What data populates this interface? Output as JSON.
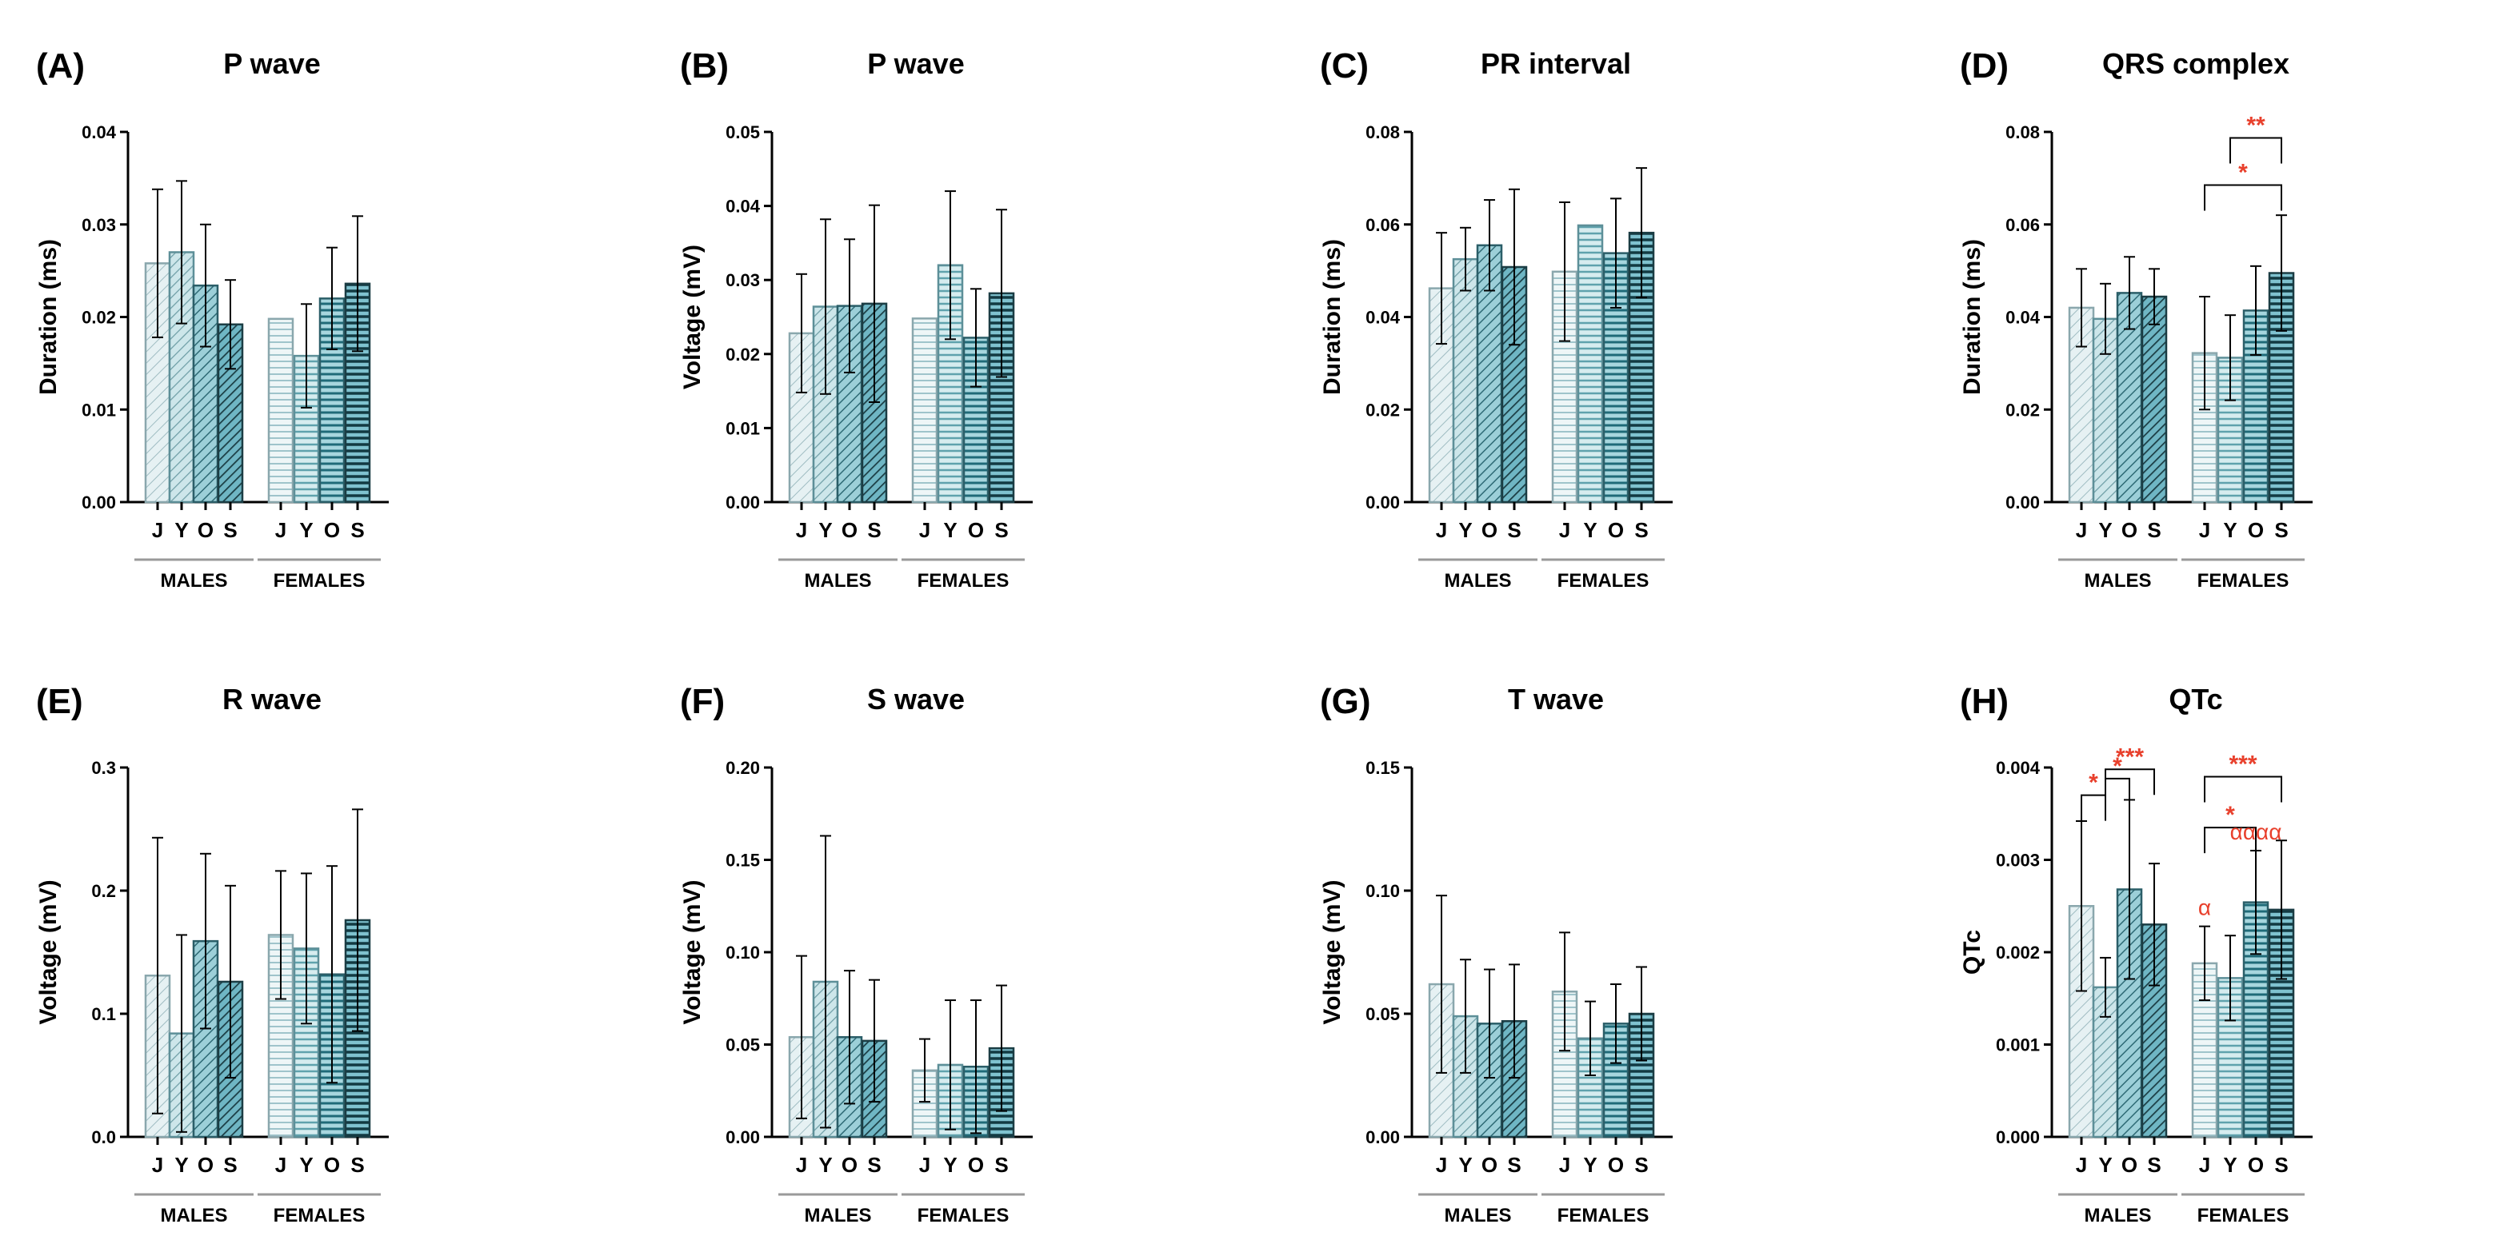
{
  "colors": {
    "axis": "#000000",
    "group_line": "#9a9a9a",
    "significance": "#e8402c",
    "fill_J": "#e6f1f3",
    "fill_Y": "#cde6ea",
    "fill_O": "#9ccfd8",
    "fill_S": "#6fb6c4",
    "stroke_J": "#8aa7ad",
    "stroke_Y": "#5d8f98",
    "stroke_O": "#2b5e68",
    "stroke_S": "#1b3d44"
  },
  "chart_data": [
    {
      "panel": "(A)",
      "type": "bar",
      "title": "P wave",
      "ylabel": "Duration (ms)",
      "ylim": [
        0,
        0.04
      ],
      "yticks": [
        "0.00",
        "0.01",
        "0.02",
        "0.03",
        "0.04"
      ],
      "categories": [
        "J",
        "Y",
        "O",
        "S",
        "J",
        "Y",
        "O",
        "S"
      ],
      "groups": [
        "MALES",
        "FEMALES"
      ],
      "values": [
        0.0258,
        0.027,
        0.0234,
        0.0192,
        0.0198,
        0.0158,
        0.022,
        0.0236
      ],
      "errors": [
        0.008,
        0.0077,
        0.0066,
        0.0048,
        0.0,
        0.0056,
        0.0055,
        0.0073
      ],
      "sig_brackets": [],
      "alpha_marks": []
    },
    {
      "panel": "(B)",
      "type": "bar",
      "title": "P wave",
      "ylabel": "Voltage (mV)",
      "ylim": [
        0,
        0.05
      ],
      "yticks": [
        "0.00",
        "0.01",
        "0.02",
        "0.03",
        "0.04",
        "0.05"
      ],
      "categories": [
        "J",
        "Y",
        "O",
        "S",
        "J",
        "Y",
        "O",
        "S"
      ],
      "groups": [
        "MALES",
        "FEMALES"
      ],
      "values": [
        0.0228,
        0.0264,
        0.0265,
        0.0268,
        0.0248,
        0.032,
        0.0222,
        0.0282
      ],
      "errors": [
        0.008,
        0.0118,
        0.009,
        0.0133,
        0.0,
        0.01,
        0.0066,
        0.0113
      ],
      "sig_brackets": [],
      "alpha_marks": []
    },
    {
      "panel": "(C)",
      "type": "bar",
      "title": "PR interval",
      "ylabel": "Duration (ms)",
      "ylim": [
        0,
        0.08
      ],
      "yticks": [
        "0.00",
        "0.02",
        "0.04",
        "0.06",
        "0.08"
      ],
      "categories": [
        "J",
        "Y",
        "O",
        "S",
        "J",
        "Y",
        "O",
        "S"
      ],
      "groups": [
        "MALES",
        "FEMALES"
      ],
      "values": [
        0.0462,
        0.0525,
        0.0555,
        0.0508,
        0.0498,
        0.0598,
        0.0538,
        0.0582
      ],
      "errors": [
        0.012,
        0.0068,
        0.0098,
        0.0168,
        0.015,
        0.0,
        0.0118,
        0.014
      ],
      "sig_brackets": [],
      "alpha_marks": []
    },
    {
      "panel": "(D)",
      "type": "bar",
      "title": "QRS complex",
      "ylabel": "Duration (ms)",
      "ylim": [
        0,
        0.08
      ],
      "yticks": [
        "0.00",
        "0.02",
        "0.04",
        "0.06",
        "0.08"
      ],
      "categories": [
        "J",
        "Y",
        "O",
        "S",
        "J",
        "Y",
        "O",
        "S"
      ],
      "groups": [
        "MALES",
        "FEMALES"
      ],
      "values": [
        0.042,
        0.0396,
        0.0452,
        0.0444,
        0.0322,
        0.0312,
        0.0414,
        0.0495
      ],
      "errors": [
        0.0084,
        0.0076,
        0.0078,
        0.006,
        0.0122,
        0.0092,
        0.0096,
        0.0125
      ],
      "sig_brackets": [
        {
          "from": 5,
          "to": 7,
          "y": 0.0787,
          "label": "**"
        },
        {
          "from": 4,
          "to": 7,
          "y": 0.0685,
          "label": "*"
        }
      ],
      "alpha_marks": []
    },
    {
      "panel": "(E)",
      "type": "bar",
      "title": "R wave",
      "ylabel": "Voltage (mV)",
      "ylim": [
        0,
        0.3
      ],
      "yticks": [
        "0.0",
        "0.1",
        "0.2",
        "0.3"
      ],
      "categories": [
        "J",
        "Y",
        "O",
        "S",
        "J",
        "Y",
        "O",
        "S"
      ],
      "groups": [
        "MALES",
        "FEMALES"
      ],
      "values": [
        0.131,
        0.084,
        0.159,
        0.126,
        0.164,
        0.153,
        0.132,
        0.176
      ],
      "errors": [
        0.112,
        0.08,
        0.071,
        0.078,
        0.052,
        0.061,
        0.088,
        0.09
      ],
      "sig_brackets": [],
      "alpha_marks": []
    },
    {
      "panel": "(F)",
      "type": "bar",
      "title": "S wave",
      "ylabel": "Voltage (mV)",
      "ylim": [
        0,
        0.2
      ],
      "yticks": [
        "0.00",
        "0.05",
        "0.10",
        "0.15",
        "0.20"
      ],
      "categories": [
        "J",
        "Y",
        "O",
        "S",
        "J",
        "Y",
        "O",
        "S"
      ],
      "groups": [
        "MALES",
        "FEMALES"
      ],
      "values": [
        0.054,
        0.084,
        0.054,
        0.052,
        0.036,
        0.039,
        0.038,
        0.048
      ],
      "errors": [
        0.044,
        0.079,
        0.036,
        0.033,
        0.017,
        0.035,
        0.036,
        0.034
      ],
      "sig_brackets": [],
      "alpha_marks": []
    },
    {
      "panel": "(G)",
      "type": "bar",
      "title": "T wave",
      "ylabel": "Voltage (mV)",
      "ylim": [
        0,
        0.15
      ],
      "yticks": [
        "0.00",
        "0.05",
        "0.10",
        "0.15"
      ],
      "categories": [
        "J",
        "Y",
        "O",
        "S",
        "J",
        "Y",
        "O",
        "S"
      ],
      "groups": [
        "MALES",
        "FEMALES"
      ],
      "values": [
        0.062,
        0.049,
        0.046,
        0.047,
        0.059,
        0.04,
        0.046,
        0.05
      ],
      "errors": [
        0.036,
        0.023,
        0.022,
        0.023,
        0.024,
        0.015,
        0.016,
        0.019
      ],
      "sig_brackets": [],
      "alpha_marks": []
    },
    {
      "panel": "(H)",
      "type": "bar",
      "title": "QTc",
      "ylabel": "QTc",
      "ylim": [
        0,
        0.004
      ],
      "yticks": [
        "0.000",
        "0.001",
        "0.002",
        "0.003",
        "0.004"
      ],
      "categories": [
        "J",
        "Y",
        "O",
        "S",
        "J",
        "Y",
        "O",
        "S"
      ],
      "groups": [
        "MALES",
        "FEMALES"
      ],
      "values": [
        0.0025,
        0.00162,
        0.00268,
        0.0023,
        0.00188,
        0.00172,
        0.00254,
        0.00246
      ],
      "errors": [
        0.00092,
        0.00032,
        0.00097,
        0.00066,
        0.0004,
        0.00046,
        0.00056,
        0.00075
      ],
      "sig_brackets": [
        {
          "from": 0,
          "to": 1,
          "y": 0.0037,
          "label": "*"
        },
        {
          "from": 1,
          "to": 2,
          "y": 0.00388,
          "label": "*"
        },
        {
          "from": 1,
          "to": 3,
          "y": 0.00398,
          "label": "***"
        },
        {
          "from": 4,
          "to": 6,
          "y": 0.00335,
          "label": "*"
        },
        {
          "from": 4,
          "to": 7,
          "y": 0.0039,
          "label": "***"
        }
      ],
      "alpha_marks": [
        {
          "bar": 4,
          "label": "α"
        },
        {
          "bar": 6,
          "label": "αααα"
        }
      ]
    }
  ]
}
